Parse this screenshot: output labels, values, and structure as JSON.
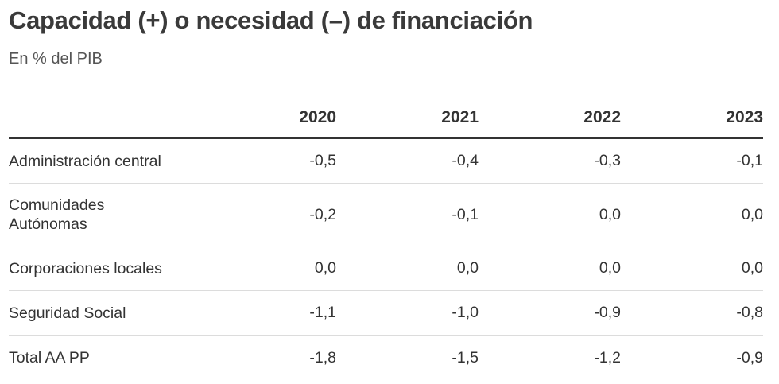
{
  "title": "Capacidad (+) o necesidad (–) de financiación",
  "subtitle": "En % del PIB",
  "table": {
    "columns": [
      "",
      "2020",
      "2021",
      "2022",
      "2023"
    ],
    "rows": [
      {
        "label_lines": [
          "Administración central"
        ],
        "values": [
          "-0,5",
          "-0,4",
          "-0,3",
          "-0,1"
        ]
      },
      {
        "label_lines": [
          "Comunidades",
          "Autónomas"
        ],
        "values": [
          "-0,2",
          "-0,1",
          "0,0",
          "0,0"
        ]
      },
      {
        "label_lines": [
          "Corporaciones locales"
        ],
        "values": [
          "0,0",
          "0,0",
          "0,0",
          "0,0"
        ]
      },
      {
        "label_lines": [
          "Seguridad Social"
        ],
        "values": [
          "-1,1",
          "-1,0",
          "-0,9",
          "-0,8"
        ]
      },
      {
        "label_lines": [
          "Total AA PP"
        ],
        "values": [
          "-1,8",
          "-1,5",
          "-1,2",
          "-0,9"
        ]
      }
    ]
  }
}
